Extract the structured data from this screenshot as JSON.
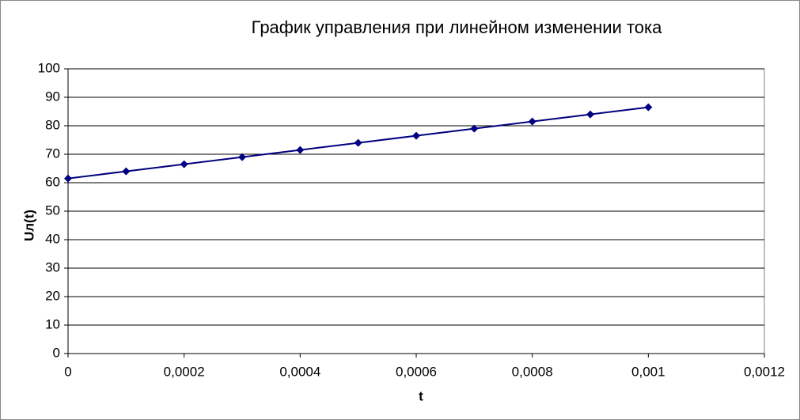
{
  "chart_data": {
    "type": "line",
    "title": "График управления при линейном изменении тока",
    "x_label": "t",
    "y_label": "Uл(t)",
    "x": [
      0,
      0.0001,
      0.0002,
      0.0003,
      0.0004,
      0.0005,
      0.0006,
      0.0007,
      0.0008,
      0.0009,
      0.001
    ],
    "values": [
      61.5,
      64,
      66.5,
      69,
      71.5,
      74,
      76.5,
      79,
      81.5,
      84,
      86.5
    ],
    "color": "#000080",
    "xlim": [
      0,
      0.0012
    ],
    "xticks": [
      0,
      {
        "value": 0.0002,
        "label": "0,0002"
      },
      {
        "value": 0.0004,
        "label": "0,0004"
      },
      {
        "value": 0.0006,
        "label": "0,0006"
      },
      {
        "value": 0.0008,
        "label": "0,0008"
      },
      {
        "value": 0.001,
        "label": "0,001"
      },
      {
        "value": 0.0012,
        "label": "0,0012"
      }
    ],
    "ylim": [
      0,
      100
    ],
    "yticks": [
      0,
      10,
      20,
      30,
      40,
      50,
      60,
      70,
      80,
      90,
      100
    ],
    "grid": true
  }
}
